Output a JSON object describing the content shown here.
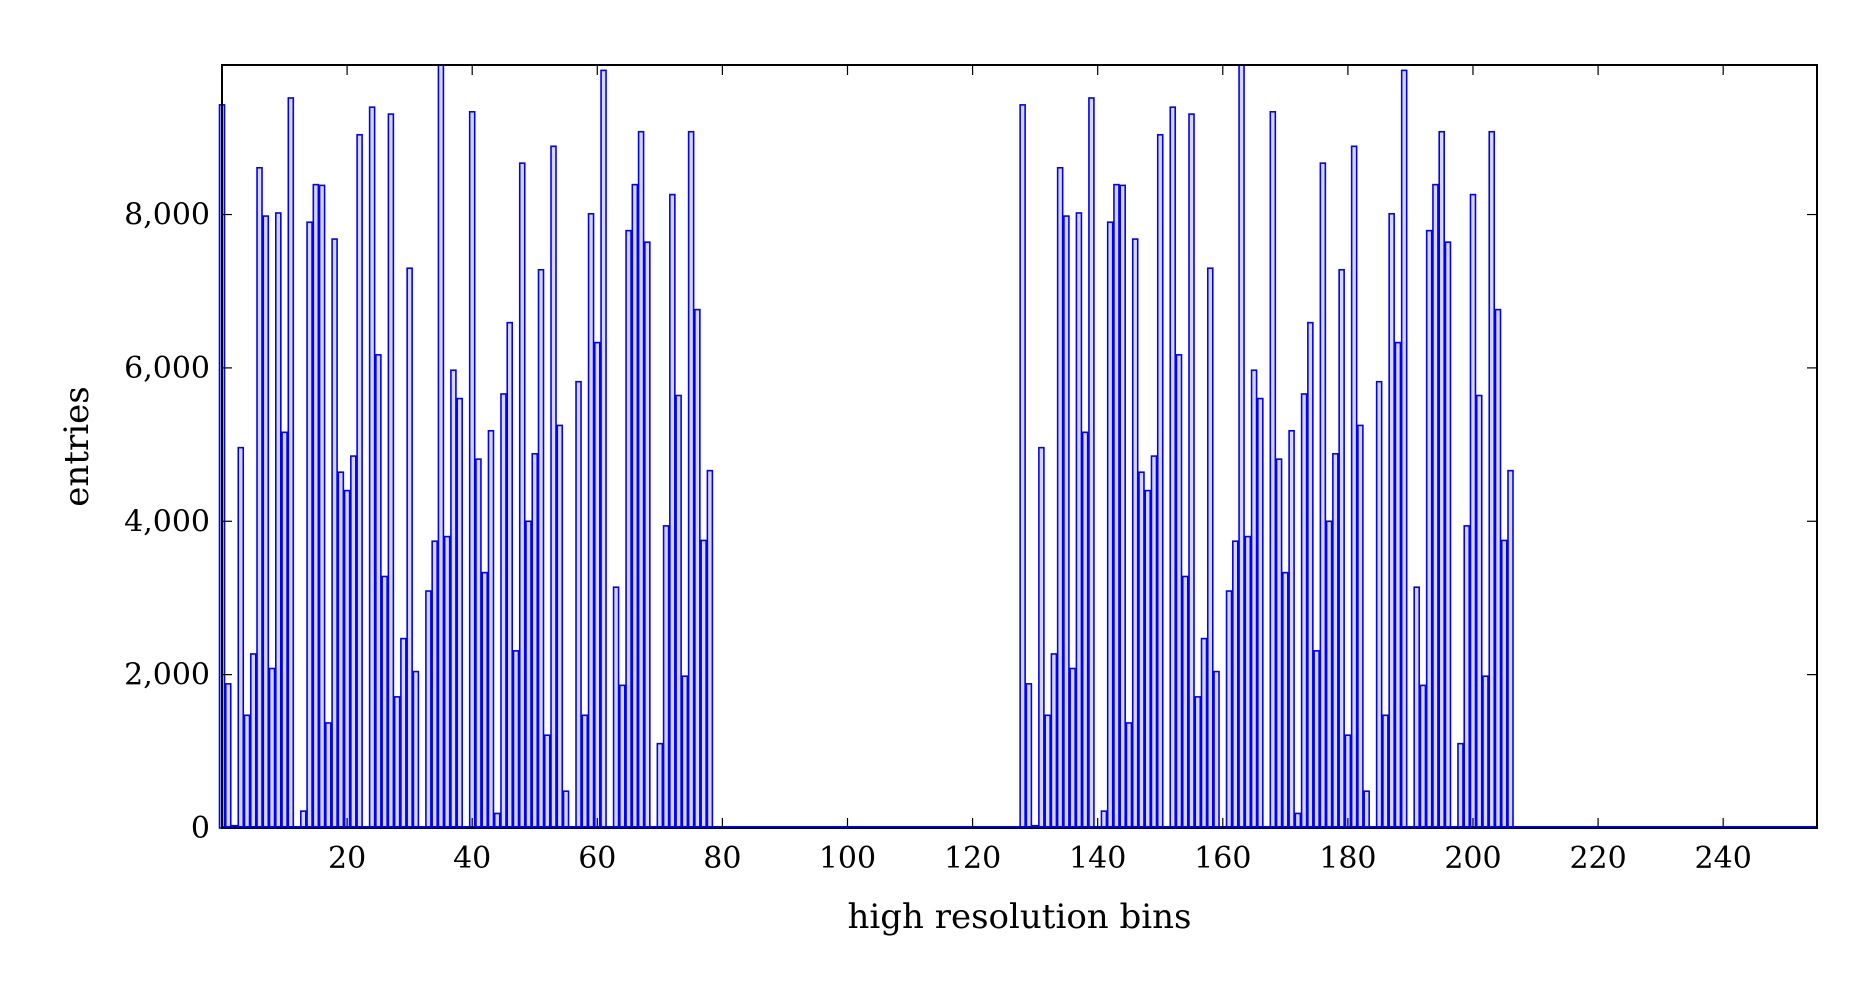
{
  "chart_data": {
    "type": "bar",
    "title": "",
    "xlabel": "high resolution bins",
    "ylabel": "entries",
    "xlim": [
      0,
      255
    ],
    "ylim": [
      0,
      9950
    ],
    "grid": false,
    "x_ticks": [
      20,
      40,
      60,
      80,
      100,
      120,
      140,
      160,
      180,
      200,
      220,
      240
    ],
    "y_ticks": [
      0,
      2000,
      4000,
      6000,
      8000
    ],
    "y_tick_labels": [
      "0",
      "2,000",
      "4,000",
      "6,000",
      "8,000"
    ],
    "bar_color": "#0000ff",
    "bar_fill": "#d6d6ff",
    "bins": [
      0,
      1,
      2,
      3,
      4,
      5,
      6,
      7,
      8,
      9,
      10,
      11,
      12,
      13,
      14,
      15,
      16,
      17,
      18,
      19,
      20,
      21,
      22,
      23,
      24,
      25,
      26,
      27,
      28,
      29,
      30,
      31,
      32,
      33,
      34,
      35,
      36,
      37,
      38,
      39,
      40,
      41,
      42,
      43,
      44,
      45,
      46,
      47,
      48,
      49,
      50,
      51,
      52,
      53,
      54,
      55,
      56,
      57,
      58,
      59,
      60,
      61,
      62,
      63,
      64,
      65,
      66,
      67,
      68,
      69,
      70,
      71,
      72,
      73,
      74,
      75,
      76,
      77,
      78,
      128,
      129,
      130,
      131,
      132,
      133,
      134,
      135,
      136,
      137,
      138,
      139,
      140,
      141,
      142,
      143,
      144,
      145,
      146,
      147,
      148,
      149,
      150,
      151,
      152,
      153,
      154,
      155,
      156,
      157,
      158,
      159,
      160,
      161,
      162,
      163,
      164,
      165,
      166,
      167,
      168,
      169,
      170,
      171,
      172,
      173,
      174,
      175,
      176,
      177,
      178,
      179,
      180,
      181,
      182,
      183,
      184,
      185,
      186,
      187,
      188,
      189,
      190,
      191,
      192,
      193,
      194,
      195,
      196,
      197,
      198,
      199,
      200,
      201,
      202,
      203,
      204,
      205,
      206
    ],
    "values": [
      9430,
      1880,
      30,
      4960,
      1470,
      2270,
      8610,
      7980,
      2080,
      8020,
      5160,
      9520,
      0,
      220,
      7900,
      8390,
      8380,
      1370,
      7680,
      4640,
      4400,
      4850,
      9040,
      0,
      9400,
      6170,
      3280,
      9310,
      1710,
      2470,
      7300,
      2040,
      0,
      3090,
      3740,
      9950,
      3800,
      5970,
      5600,
      0,
      9340,
      4810,
      3330,
      5180,
      190,
      5660,
      6590,
      2310,
      8670,
      4000,
      4880,
      7280,
      1210,
      8890,
      5250,
      480,
      0,
      5820,
      1470,
      8010,
      6330,
      9880,
      0,
      3140,
      1860,
      7790,
      8390,
      9080,
      7640,
      0,
      1100,
      3940,
      8260,
      5640,
      1980,
      9080,
      6760,
      3750,
      4660,
      9430,
      1880,
      30,
      4960,
      1470,
      2270,
      8610,
      7980,
      2080,
      8020,
      5160,
      9520,
      0,
      220,
      7900,
      8390,
      8380,
      1370,
      7680,
      4640,
      4400,
      4850,
      9040,
      0,
      9400,
      6170,
      3280,
      9310,
      1710,
      2470,
      7300,
      2040,
      0,
      3090,
      3740,
      9950,
      3800,
      5970,
      5600,
      0,
      9340,
      4810,
      3330,
      5180,
      190,
      5660,
      6590,
      2310,
      8670,
      4000,
      4880,
      7280,
      1210,
      8890,
      5250,
      480,
      0,
      5820,
      1470,
      8010,
      6330,
      9880,
      0,
      3140,
      1860,
      7790,
      8390,
      9080,
      7640,
      0,
      1100,
      3940,
      8260,
      5640,
      1980,
      9080,
      6760,
      3750,
      4660
    ]
  }
}
